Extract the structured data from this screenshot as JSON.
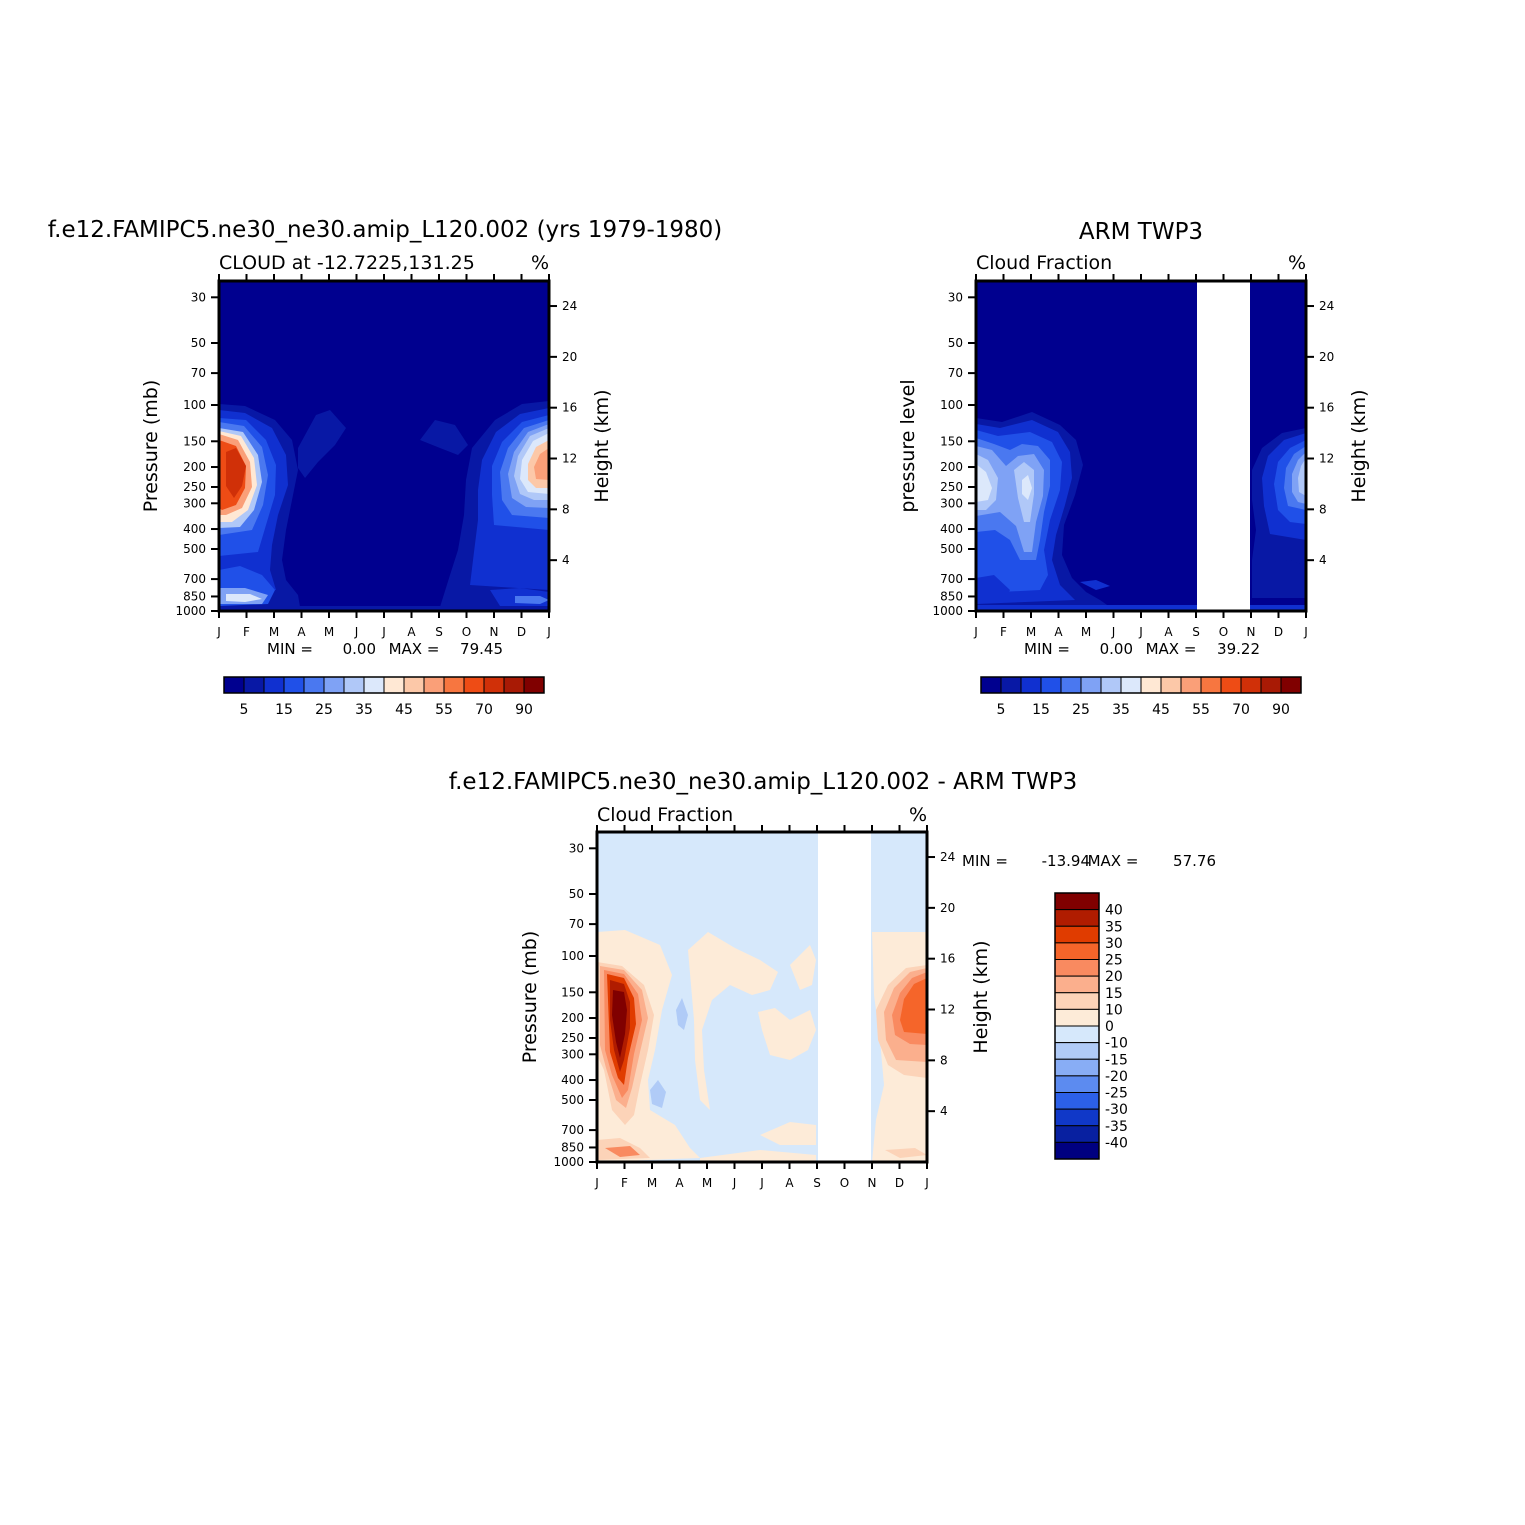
{
  "colors": {
    "model_obs_scale": [
      "#00008f",
      "#0818a5",
      "#1030d0",
      "#2050e8",
      "#4a78f0",
      "#7fa2f5",
      "#b0c8f8",
      "#dce8fb",
      "#ffe8d4",
      "#fcc8a8",
      "#fa9f78",
      "#f77640",
      "#ee4c15",
      "#d03008",
      "#a81a05",
      "#800000"
    ],
    "diff_scale": [
      "#800000",
      "#b01c00",
      "#e03c00",
      "#f5652a",
      "#f98a60",
      "#fbaf8d",
      "#fcd3b8",
      "#fdebd8",
      "#d6e8fb",
      "#b0cbf7",
      "#88adf5",
      "#5c8bf0",
      "#2c60e8",
      "#1038c8",
      "#0820a0",
      "#000080"
    ]
  },
  "panels": [
    {
      "id": "model",
      "main_title": "f.e12.FAMIPC5.ne30_ne30.amip_L120.002 (yrs 1979-1980)",
      "left_string": "CLOUD at -12.7225,131.25",
      "right_string": "%",
      "ylabel": "Pressure (mb)",
      "y2label": "Height (km)",
      "min_label": "MIN =",
      "min_value": "0.00",
      "max_label": "MAX =",
      "max_value": "79.45"
    },
    {
      "id": "obs",
      "main_title": "ARM TWP3",
      "left_string": "Cloud Fraction",
      "right_string": "%",
      "ylabel": "pressure level",
      "y2label": "Height (km)",
      "min_label": "MIN =",
      "min_value": "0.00",
      "max_label": "MAX =",
      "max_value": "39.22"
    },
    {
      "id": "diff",
      "main_title": "f.e12.FAMIPC5.ne30_ne30.amip_L120.002 - ARM TWP3",
      "left_string": "Cloud Fraction",
      "right_string": "%",
      "ylabel": "Pressure (mb)",
      "y2label": "Height (km)",
      "min_label": "MIN =",
      "min_value": "-13.94",
      "max_label": "MAX =",
      "max_value": "57.76"
    }
  ],
  "chart_data": [
    {
      "type": "heatmap",
      "title": "f.e12.FAMIPC5.ne30_ne30.amip_L120.002 (yrs 1979-1980)",
      "subtitle": "CLOUD at -12.7225,131.25",
      "units": "%",
      "xlabel": "",
      "ylabel": "Pressure (mb)",
      "y2label": "Height (km)",
      "x_ticks": [
        "J",
        "F",
        "M",
        "A",
        "M",
        "J",
        "J",
        "A",
        "S",
        "O",
        "N",
        "D",
        "J"
      ],
      "y_ticks": [
        "30",
        "50",
        "70",
        "100",
        "150",
        "200",
        "250",
        "300",
        "400",
        "500",
        "700",
        "850",
        "1000"
      ],
      "y2_ticks": [
        "24",
        "20",
        "16",
        "12",
        "8",
        "4"
      ],
      "y_scale": "log",
      "min": 0.0,
      "max": 79.45,
      "colorbar_labels": [
        "5",
        "15",
        "25",
        "35",
        "45",
        "55",
        "70",
        "90"
      ],
      "features": [
        {
          "month": 1,
          "pressure_mb": 210,
          "peak": 75
        },
        {
          "month": 12,
          "pressure_mb": 210,
          "peak": 45
        },
        {
          "month": 1,
          "pressure_mb": 960,
          "peak": 35
        }
      ]
    },
    {
      "type": "heatmap",
      "title": "ARM TWP3",
      "subtitle": "Cloud Fraction",
      "units": "%",
      "xlabel": "",
      "ylabel": "pressure level",
      "y2label": "Height (km)",
      "x_ticks": [
        "J",
        "F",
        "M",
        "A",
        "M",
        "J",
        "J",
        "A",
        "S",
        "O",
        "N",
        "D",
        "J"
      ],
      "y_ticks": [
        "30",
        "50",
        "70",
        "100",
        "150",
        "200",
        "250",
        "300",
        "400",
        "500",
        "700",
        "850",
        "1000"
      ],
      "y2_ticks": [
        "24",
        "20",
        "16",
        "12",
        "8",
        "4"
      ],
      "y_scale": "log",
      "min": 0.0,
      "max": 39.22,
      "missing_months": [
        "S",
        "O",
        "N"
      ],
      "colorbar_labels": [
        "5",
        "15",
        "25",
        "35",
        "45",
        "55",
        "70",
        "90"
      ],
      "features": [
        {
          "month": 0,
          "pressure_mb": 250,
          "peak": 38
        },
        {
          "month": 2,
          "pressure_mb": 300,
          "peak": 30
        },
        {
          "month": 12,
          "pressure_mb": 250,
          "peak": 38
        }
      ]
    },
    {
      "type": "heatmap",
      "title": "f.e12.FAMIPC5.ne30_ne30.amip_L120.002 - ARM TWP3",
      "subtitle": "Cloud Fraction",
      "units": "%",
      "xlabel": "",
      "ylabel": "Pressure (mb)",
      "y2label": "Height (km)",
      "x_ticks": [
        "J",
        "F",
        "M",
        "A",
        "M",
        "J",
        "J",
        "A",
        "S",
        "O",
        "N",
        "D",
        "J"
      ],
      "y_ticks": [
        "30",
        "50",
        "70",
        "100",
        "150",
        "200",
        "250",
        "300",
        "400",
        "500",
        "700",
        "850",
        "1000"
      ],
      "y2_ticks": [
        "24",
        "20",
        "16",
        "12",
        "8",
        "4"
      ],
      "y_scale": "log",
      "min": -13.94,
      "max": 57.76,
      "missing_months": [
        "S",
        "O",
        "N"
      ],
      "colorbar_labels": [
        "40",
        "35",
        "30",
        "25",
        "20",
        "15",
        "10",
        "0",
        "-10",
        "-15",
        "-20",
        "-25",
        "-30",
        "-35",
        "-40"
      ],
      "features": [
        {
          "month": 1,
          "pressure_mb": 210,
          "peak": 55
        },
        {
          "month": 12,
          "pressure_mb": 180,
          "peak": 25
        }
      ]
    }
  ]
}
